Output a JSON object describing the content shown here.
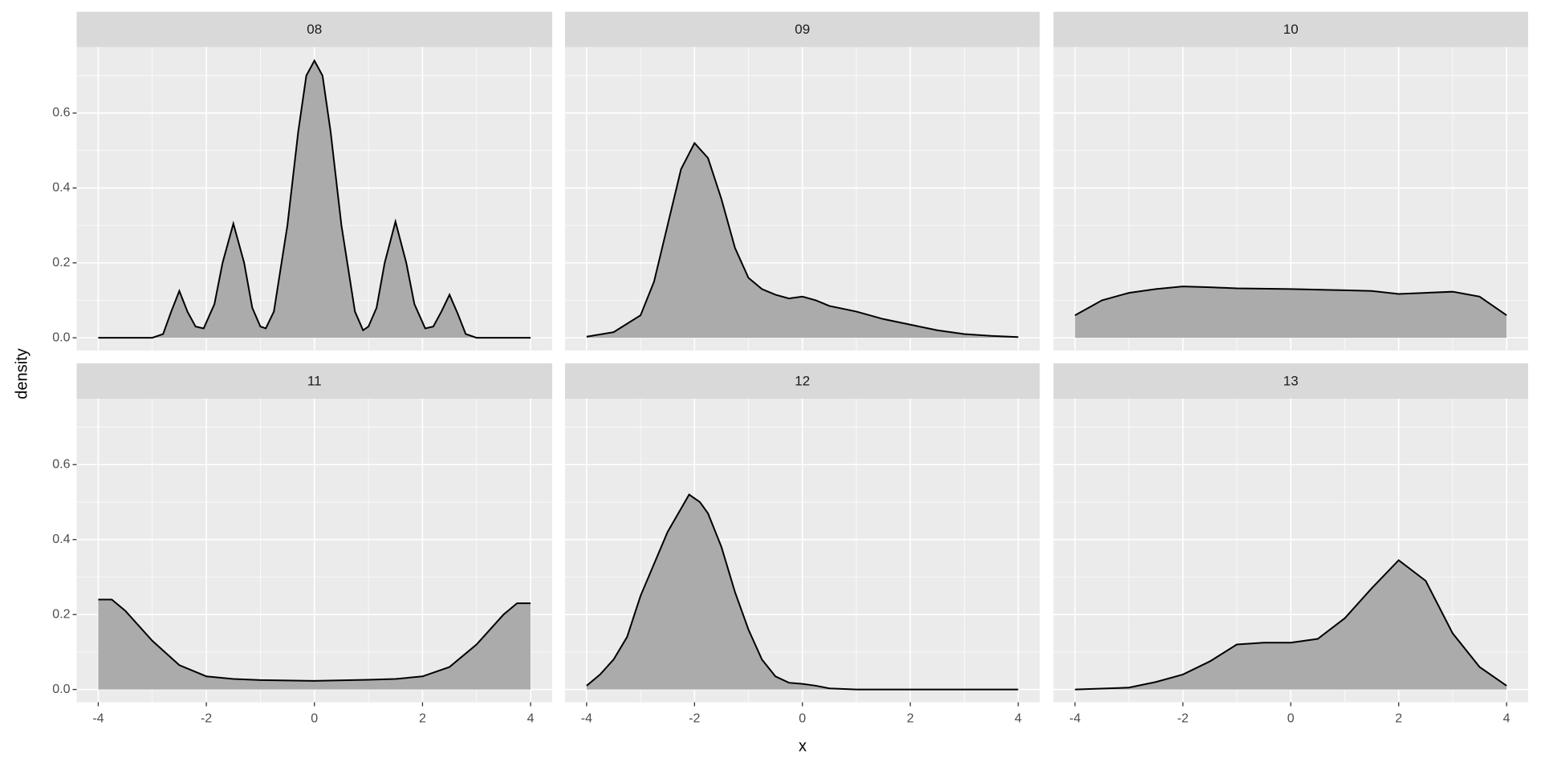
{
  "chart_data": {
    "type": "facet_area",
    "xlabel": "x",
    "ylabel": "density",
    "xlim": [
      -4.4,
      4.4
    ],
    "ylim": [
      -0.034,
      0.776
    ],
    "xticks": [
      -4,
      -2,
      0,
      2,
      4
    ],
    "yticks": [
      {
        "value": 0,
        "label": "0.0"
      },
      0.2,
      0.4,
      0.6
    ],
    "grid": true,
    "minor_grid": true,
    "fill": "#ababab",
    "line_color": "#000000",
    "panels": [
      {
        "title": "08",
        "x": [
          -4,
          -3,
          -2.8,
          -2.65,
          -2.5,
          -2.35,
          -2.2,
          -2.05,
          -1.85,
          -1.7,
          -1.5,
          -1.3,
          -1.15,
          -1,
          -0.9,
          -0.75,
          -0.5,
          -0.3,
          -0.15,
          0,
          0.15,
          0.3,
          0.5,
          0.75,
          0.9,
          1,
          1.15,
          1.3,
          1.5,
          1.7,
          1.85,
          2.05,
          2.2,
          2.35,
          2.5,
          2.65,
          2.8,
          3,
          4
        ],
        "y": [
          0,
          0,
          0.01,
          0.07,
          0.125,
          0.07,
          0.03,
          0.025,
          0.09,
          0.2,
          0.305,
          0.2,
          0.08,
          0.03,
          0.025,
          0.07,
          0.3,
          0.55,
          0.7,
          0.74,
          0.7,
          0.55,
          0.3,
          0.07,
          0.02,
          0.03,
          0.08,
          0.2,
          0.31,
          0.2,
          0.09,
          0.025,
          0.03,
          0.07,
          0.115,
          0.065,
          0.01,
          0,
          0
        ]
      },
      {
        "title": "09",
        "x": [
          -4,
          -3.5,
          -3,
          -2.75,
          -2.5,
          -2.25,
          -2,
          -1.75,
          -1.5,
          -1.25,
          -1,
          -0.75,
          -0.5,
          -0.25,
          0,
          0.25,
          0.5,
          1,
          1.5,
          2,
          2.5,
          3,
          3.5,
          4
        ],
        "y": [
          0.003,
          0.015,
          0.06,
          0.15,
          0.3,
          0.45,
          0.52,
          0.48,
          0.37,
          0.24,
          0.16,
          0.13,
          0.115,
          0.105,
          0.11,
          0.1,
          0.085,
          0.07,
          0.05,
          0.035,
          0.02,
          0.01,
          0.005,
          0.002
        ]
      },
      {
        "title": "10",
        "x": [
          -4,
          -3.5,
          -3,
          -2.5,
          -2,
          -1.5,
          -1,
          0,
          1,
          1.5,
          2,
          2.5,
          3,
          3.5,
          4
        ],
        "y": [
          0.06,
          0.1,
          0.12,
          0.13,
          0.137,
          0.135,
          0.132,
          0.13,
          0.127,
          0.125,
          0.117,
          0.12,
          0.123,
          0.11,
          0.06
        ]
      },
      {
        "title": "11",
        "x": [
          -4,
          -3.75,
          -3.5,
          -3,
          -2.5,
          -2,
          -1.5,
          -1,
          0,
          1,
          1.5,
          2,
          2.5,
          3,
          3.5,
          3.75,
          4
        ],
        "y": [
          0.24,
          0.24,
          0.21,
          0.13,
          0.065,
          0.035,
          0.028,
          0.025,
          0.023,
          0.026,
          0.028,
          0.035,
          0.06,
          0.12,
          0.2,
          0.23,
          0.23
        ]
      },
      {
        "title": "12",
        "x": [
          -4,
          -3.75,
          -3.5,
          -3.25,
          -3,
          -2.5,
          -2.1,
          -1.9,
          -1.75,
          -1.5,
          -1.25,
          -1,
          -0.75,
          -0.5,
          -0.25,
          0,
          0.25,
          0.5,
          1,
          4
        ],
        "y": [
          0.01,
          0.04,
          0.08,
          0.14,
          0.25,
          0.42,
          0.52,
          0.5,
          0.47,
          0.38,
          0.26,
          0.16,
          0.08,
          0.035,
          0.018,
          0.015,
          0.01,
          0.003,
          0,
          0
        ]
      },
      {
        "title": "13",
        "x": [
          -4,
          -3,
          -2.5,
          -2,
          -1.5,
          -1,
          -0.5,
          0,
          0.5,
          1,
          1.5,
          2,
          2.5,
          3,
          3.5,
          4
        ],
        "y": [
          0,
          0.005,
          0.02,
          0.04,
          0.075,
          0.12,
          0.125,
          0.125,
          0.135,
          0.19,
          0.27,
          0.345,
          0.29,
          0.15,
          0.06,
          0.01
        ]
      }
    ]
  }
}
